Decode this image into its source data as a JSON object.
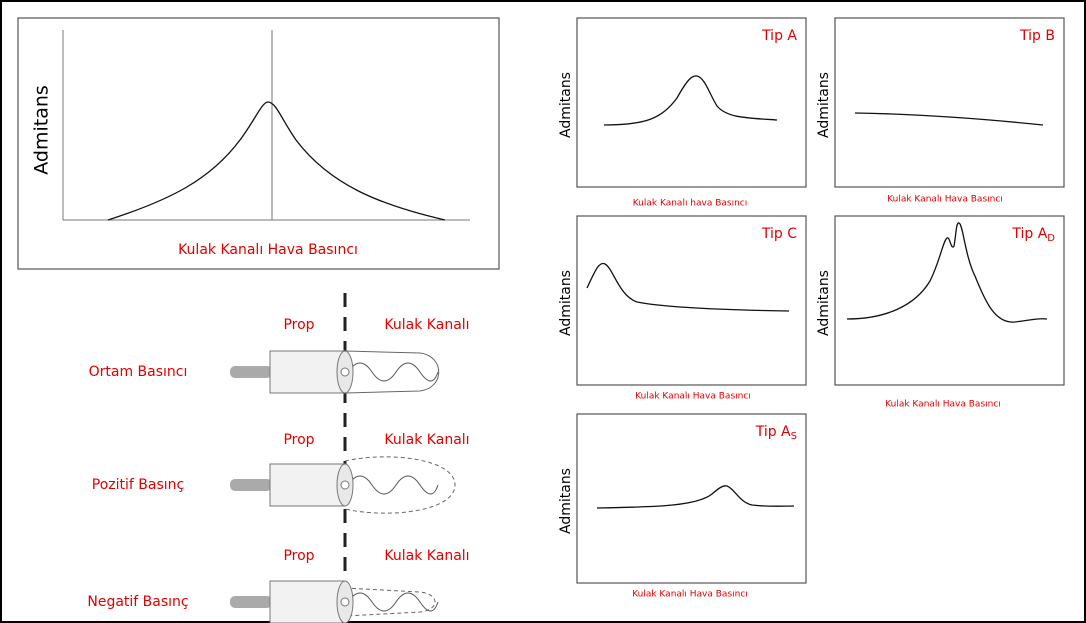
{
  "main_chart": {
    "y_label": "Admitans",
    "x_label": "Kulak Kanalı Hava Basıncı"
  },
  "panels": [
    {
      "title": "Tip A",
      "y_label": "Admitans",
      "x_label": "Kulak Kanalı hava Basıncı"
    },
    {
      "title": "Tip B",
      "y_label": "Admitans",
      "x_label": "Kulak Kanalı Hava Basıncı"
    },
    {
      "title": "Tip C",
      "y_label": "Admitans",
      "x_label": "Kulak Kanalı Hava Basıncı"
    },
    {
      "title": "Tip A",
      "subscript": "D",
      "y_label": "Admitans",
      "x_label": "Kulak Kanalı Hava Basıncı"
    },
    {
      "title": "Tip A",
      "subscript": "S",
      "y_label": "Admitans",
      "x_label": "Kulak Kanalı Hava Basıncı"
    }
  ],
  "probes": [
    {
      "condition": "Ortam Basıncı",
      "prop": "Prop",
      "canal": "Kulak Kanalı"
    },
    {
      "condition": "Pozitif Basınç",
      "prop": "Prop",
      "canal": "Kulak Kanalı"
    },
    {
      "condition": "Negatif Basınç",
      "prop": "Prop",
      "canal": "Kulak Kanalı"
    }
  ]
}
